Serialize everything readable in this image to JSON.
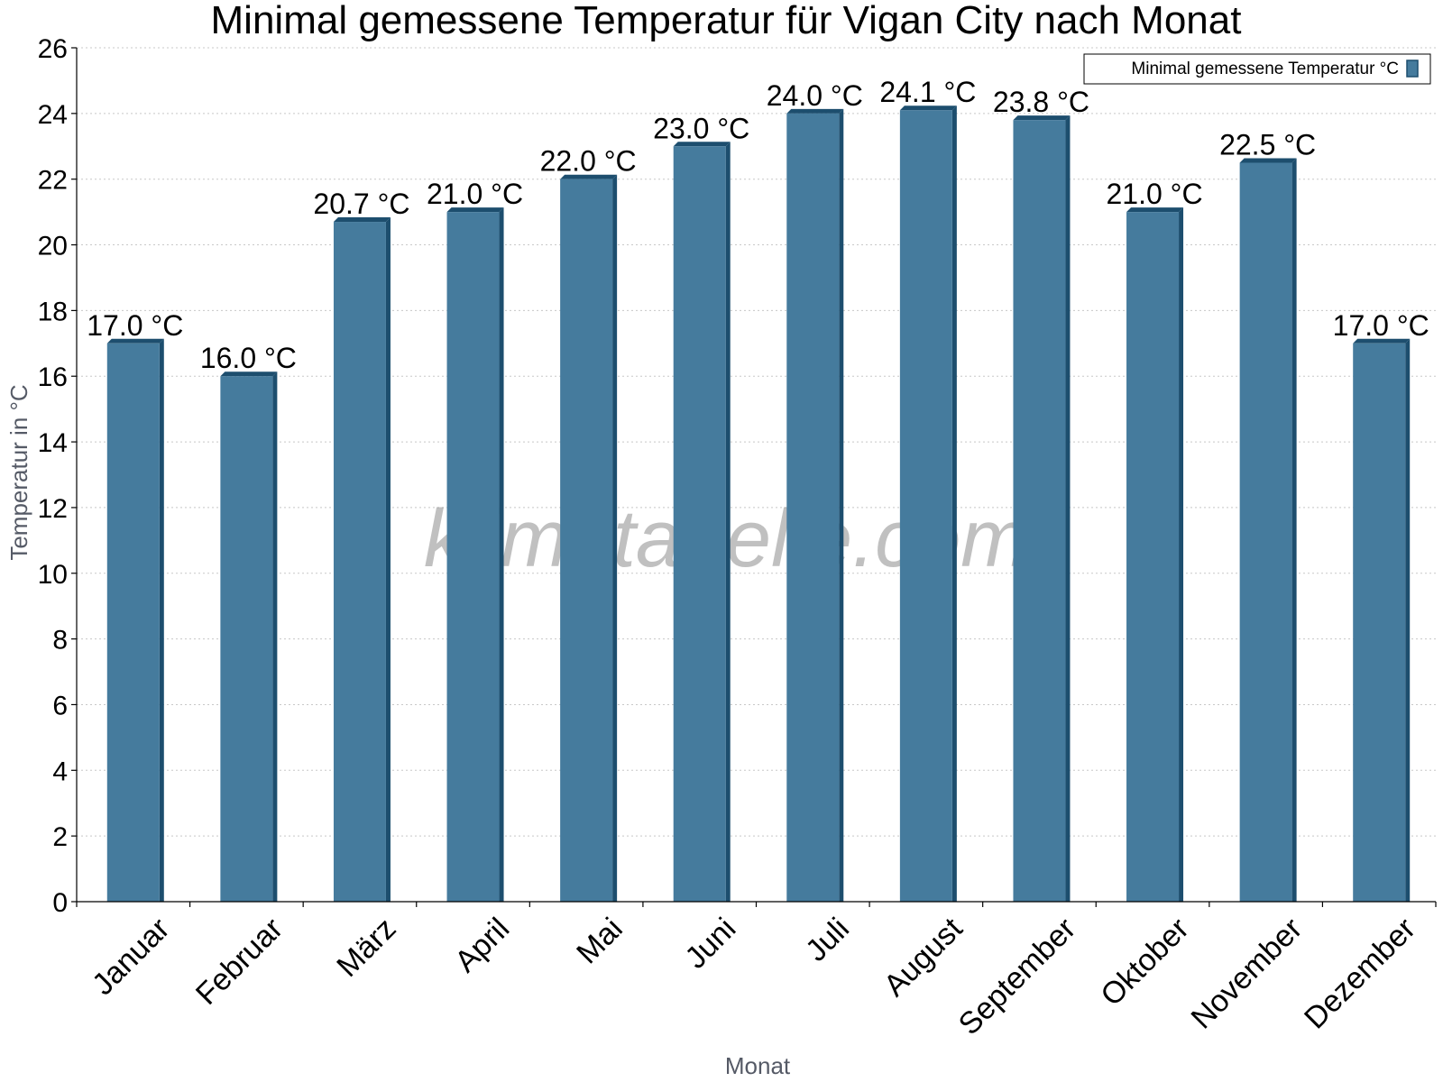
{
  "chart_data": {
    "type": "bar",
    "title": "Minimal gemessene Temperatur für Vigan City nach Monat",
    "xlabel": "Monat",
    "ylabel": "Temperatur in °C",
    "categories": [
      "Januar",
      "Februar",
      "März",
      "April",
      "Mai",
      "Juni",
      "Juli",
      "August",
      "September",
      "Oktober",
      "November",
      "Dezember"
    ],
    "series": [
      {
        "name": "Minimal gemessene Temperatur °C",
        "values": [
          17.0,
          16.0,
          20.7,
          21.0,
          22.0,
          23.0,
          24.0,
          24.1,
          23.8,
          21.0,
          22.5,
          17.0
        ],
        "data_labels": [
          "17.0 °C",
          "16.0 °C",
          "20.7 °C",
          "21.0 °C",
          "22.0 °C",
          "23.0 °C",
          "24.0 °C",
          "24.1 °C",
          "23.8 °C",
          "21.0 °C",
          "22.5 °C",
          "17.0 °C"
        ]
      }
    ],
    "ylim": [
      0,
      26
    ],
    "yticks": [
      0,
      2,
      4,
      6,
      8,
      10,
      12,
      14,
      16,
      18,
      20,
      22,
      24,
      26
    ],
    "grid": true,
    "legend_position": "top-right",
    "colors": {
      "bar": "#457b9d",
      "bar_side": "#1d4e6e",
      "grid": "#c8c8c8"
    }
  },
  "watermark": "klimatabelle.com"
}
